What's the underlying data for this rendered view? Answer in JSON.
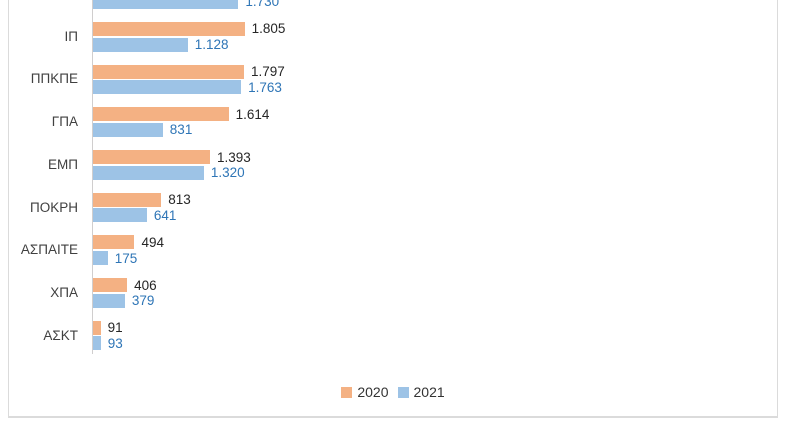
{
  "chart_data": {
    "type": "bar",
    "orientation": "horizontal",
    "categories": [
      "",
      "ΙΠ",
      "ΠΠΚΠΕ",
      "ΓΠΑ",
      "ΕΜΠ",
      "ΠΟΚΡΗ",
      "ΑΣΠΑΙΤΕ",
      "ΧΠΑ",
      "ΑΣΚΤ"
    ],
    "top_category_clipped": true,
    "series": [
      {
        "name": "2020",
        "color": "#F4B183",
        "label_color": "#262626",
        "values": [
          null,
          1805,
          1797,
          1614,
          1393,
          813,
          494,
          406,
          91
        ],
        "labels": [
          "",
          "1.805",
          "1.797",
          "1.614",
          "1.393",
          "813",
          "494",
          "406",
          "91"
        ]
      },
      {
        "name": "2021",
        "color": "#9DC3E6",
        "label_color": "#2E75B6",
        "values": [
          1730,
          1128,
          1763,
          831,
          1320,
          641,
          175,
          379,
          93
        ],
        "labels": [
          "1.730",
          "1.128",
          "1.763",
          "831",
          "1.320",
          "641",
          "175",
          "379",
          "93"
        ]
      }
    ],
    "xlim": [
      0,
      8000
    ],
    "grid": false,
    "xlabel": "",
    "ylabel": "",
    "legend_position": "bottom",
    "legend_entries": [
      "2020",
      "2021"
    ]
  }
}
